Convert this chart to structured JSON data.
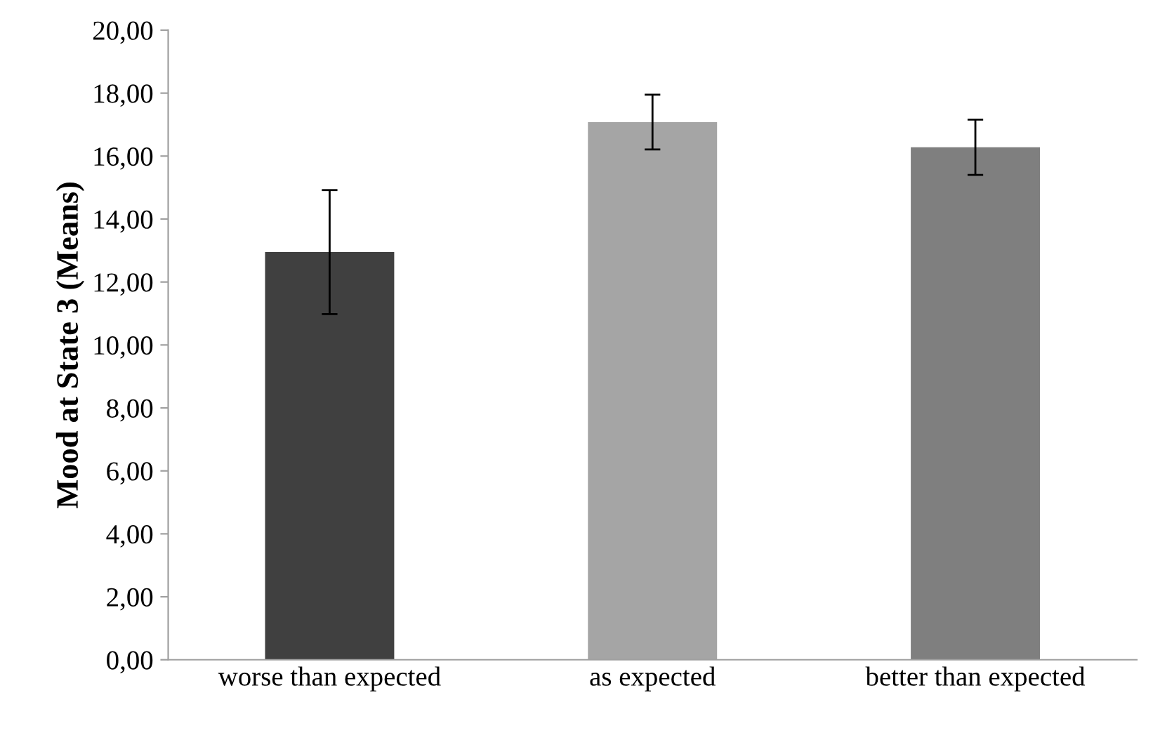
{
  "chart_data": {
    "type": "bar",
    "ylabel": "Mood at State 3 (Means)",
    "categories": [
      "worse than expected",
      "as expected",
      "better than expected"
    ],
    "values": [
      12.95,
      17.08,
      16.28
    ],
    "errors": [
      1.97,
      0.87,
      0.88
    ],
    "colors": [
      "#404040",
      "#a5a5a5",
      "#7f7f7f"
    ],
    "ylim": [
      0,
      20
    ],
    "yticks": [
      {
        "value": 0,
        "label": "0,00"
      },
      {
        "value": 2,
        "label": "2,00"
      },
      {
        "value": 4,
        "label": "4,00"
      },
      {
        "value": 6,
        "label": "6,00"
      },
      {
        "value": 8,
        "label": "8,00"
      },
      {
        "value": 10,
        "label": "10,00"
      },
      {
        "value": 12,
        "label": "12,00"
      },
      {
        "value": 14,
        "label": "14,00"
      },
      {
        "value": 16,
        "label": "16,00"
      },
      {
        "value": 18,
        "label": "18,00"
      },
      {
        "value": 20,
        "label": "20,00"
      }
    ],
    "grid": false,
    "legend": false
  }
}
